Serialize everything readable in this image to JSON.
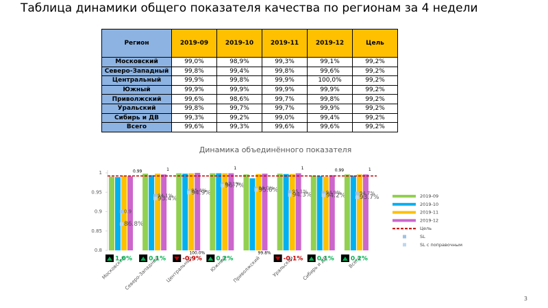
{
  "slide_title": "Таблица динамики общего показателя качества по регионам за 4 недели",
  "table": {
    "header": [
      "Регион",
      "2019-09",
      "2019-10",
      "2019-11",
      "2019-12",
      "Цель"
    ],
    "rows": [
      [
        "Московский",
        "99,0%",
        "98,9%",
        "99,3%",
        "99,1%",
        "99,2%"
      ],
      [
        "Северо-Западный",
        "99,8%",
        "99,4%",
        "99,8%",
        "99,6%",
        "99,2%"
      ],
      [
        "Центральный",
        "99,9%",
        "99,8%",
        "99,9%",
        "100,0%",
        "99,2%"
      ],
      [
        "Южный",
        "99,9%",
        "99,9%",
        "99,9%",
        "99,9%",
        "99,2%"
      ],
      [
        "Приволжский",
        "99,6%",
        "98,6%",
        "99,7%",
        "99,8%",
        "99,2%"
      ],
      [
        "Уральский",
        "99,8%",
        "99,7%",
        "99,7%",
        "99,9%",
        "99,2%"
      ],
      [
        "Сибирь и ДВ",
        "99,3%",
        "99,2%",
        "99,0%",
        "99,4%",
        "99,2%"
      ],
      [
        "Всего",
        "99,6%",
        "99,3%",
        "99,6%",
        "99,6%",
        "99,2%"
      ]
    ]
  },
  "chart_data": {
    "type": "bar",
    "title": "Динамика объединённого показателя",
    "categories": [
      "Московский",
      "Северо-Западный",
      "Центральный",
      "Южный",
      "Приволжский",
      "Уральский",
      "Сибирь и ДВ",
      "Всего"
    ],
    "series": [
      {
        "name": "2019-09",
        "color": "#92d050",
        "values": [
          0.99,
          0.998,
          0.999,
          0.999,
          0.996,
          0.998,
          0.993,
          0.996
        ]
      },
      {
        "name": "2019-10",
        "color": "#00b0f0",
        "values": [
          0.989,
          0.994,
          0.998,
          0.999,
          0.986,
          0.997,
          0.992,
          0.993
        ]
      },
      {
        "name": "2019-11",
        "color": "#ffc000",
        "values": [
          0.993,
          0.998,
          0.999,
          0.999,
          0.997,
          0.997,
          0.99,
          0.996
        ]
      },
      {
        "name": "2019-12",
        "color": "#cc66cc",
        "values": [
          0.991,
          0.996,
          1.0,
          0.999,
          0.998,
          0.999,
          0.994,
          0.996
        ],
        "value_labels": [
          "0.99",
          "1",
          null,
          "1",
          null,
          "1",
          "0.99",
          "1"
        ]
      }
    ],
    "target": {
      "name": "Цель",
      "color": "#c00000",
      "values": [
        0.992,
        0.992,
        0.992,
        0.992,
        0.992,
        0.992,
        0.992,
        0.992
      ]
    },
    "sl_series": [
      {
        "name": "SL",
        "color": "#9dc3e6",
        "values": [
          0.9,
          0.941,
          0.954,
          0.971,
          0.96,
          0.951,
          0.949,
          0.947
        ],
        "value_labels": [
          "0.9",
          "94.1%",
          "95.4%",
          "97.1%",
          "96.0%",
          "95.1%",
          "94.9%",
          "94.7%"
        ]
      },
      {
        "name": "SL с поправочным",
        "color": "#bdd7ee",
        "values": [
          0.868,
          0.934,
          0.949,
          0.967,
          0.956,
          0.943,
          0.942,
          0.937
        ],
        "value_labels": [
          "86.8%",
          "93.4%",
          "94.9%",
          "96.7%",
          "95.6%",
          "94.3%",
          "94.2%",
          "93.7%"
        ]
      }
    ],
    "deltas": [
      "1,0%",
      "0,1%",
      "-0,9%",
      "0,2%",
      null,
      "-0,1%",
      "0,1%",
      "0,2%"
    ],
    "bottom_labels": [
      null,
      null,
      "100.0%",
      null,
      "99.8%",
      null,
      null,
      null
    ],
    "ylim": [
      0.8,
      1.0
    ],
    "yticks": [
      0.8,
      0.85,
      0.9,
      0.95,
      1
    ],
    "grid": false,
    "legend": "right"
  },
  "page_number": "3"
}
